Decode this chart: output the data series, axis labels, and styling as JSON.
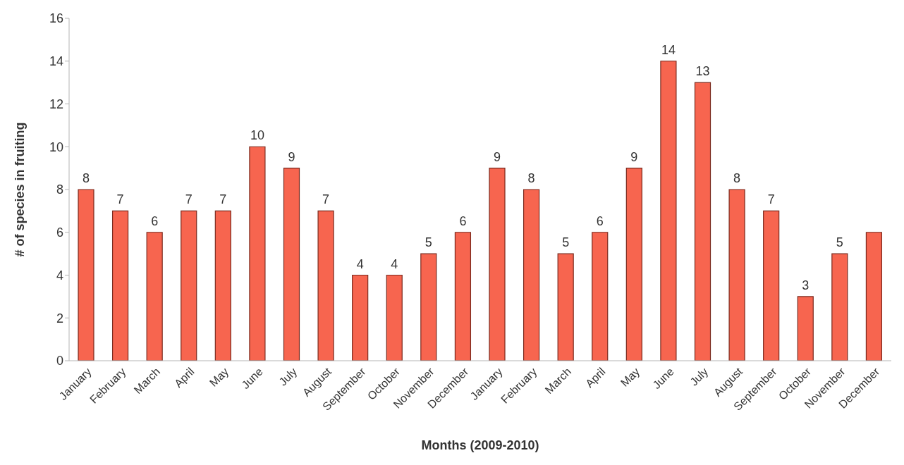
{
  "chart_data": {
    "type": "bar",
    "xlabel": "Months (2009-2010)",
    "ylabel": "# of species in fruiting",
    "categories": [
      "January",
      "February",
      "March",
      "April",
      "May",
      "June",
      "July",
      "August",
      "September",
      "October",
      "November",
      "December",
      "January",
      "February",
      "March",
      "April",
      "May",
      "June",
      "July",
      "August",
      "September",
      "October",
      "November",
      "December"
    ],
    "values": [
      8,
      7,
      6,
      7,
      7,
      10,
      9,
      7,
      4,
      4,
      5,
      6,
      9,
      8,
      5,
      6,
      9,
      14,
      13,
      8,
      7,
      3,
      5,
      6
    ],
    "value_labels": [
      "8",
      "7",
      "6",
      "7",
      "7",
      "10",
      "9",
      "7",
      "4",
      "4",
      "5",
      "6",
      "9",
      "8",
      "5",
      "6",
      "9",
      "14",
      "13",
      "8",
      "7",
      "3",
      "5",
      null
    ],
    "color": "#f7654f",
    "ylim": [
      0,
      16
    ],
    "yticks": [
      0,
      2,
      4,
      6,
      8,
      10,
      12,
      14,
      16
    ]
  }
}
